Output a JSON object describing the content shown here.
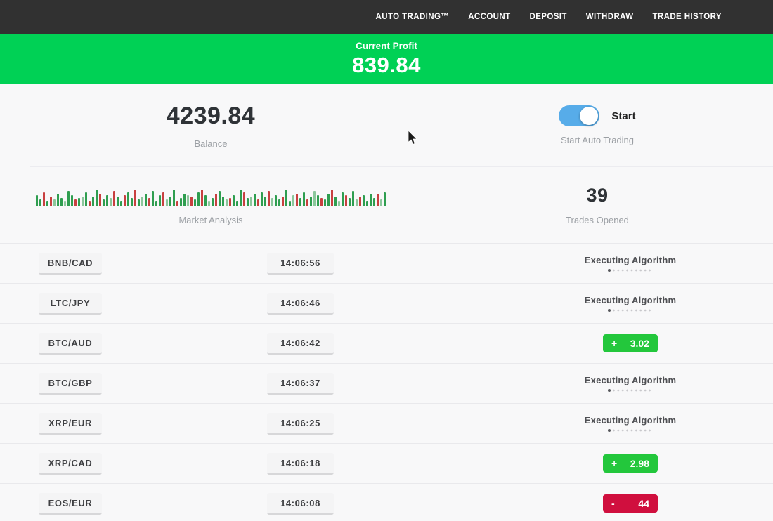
{
  "nav": {
    "items": [
      {
        "label": "AUTO TRADING™"
      },
      {
        "label": "ACCOUNT"
      },
      {
        "label": "DEPOSIT"
      },
      {
        "label": "WITHDRAW"
      },
      {
        "label": "TRADE HISTORY"
      }
    ]
  },
  "profit_banner": {
    "label": "Current Profit",
    "value": "839.84"
  },
  "stats": {
    "balance": {
      "value": "4239.84",
      "label": "Balance"
    },
    "auto_trading": {
      "toggle_label": "Start",
      "label": "Start Auto Trading",
      "toggle_on": true
    },
    "market_analysis": {
      "label": "Market Analysis",
      "bars": [
        "g16",
        "g10",
        "r20",
        "g8",
        "r14",
        "G10",
        "g18",
        "g12",
        "G8",
        "g22",
        "g16",
        "r10",
        "g12",
        "G14",
        "g20",
        "r8",
        "g14",
        "g24",
        "r18",
        "g10",
        "g16",
        "G12",
        "r22",
        "g14",
        "g8",
        "r16",
        "g20",
        "g12",
        "r24",
        "g10",
        "G14",
        "g18",
        "r12",
        "g22",
        "g8",
        "g16",
        "r20",
        "G10",
        "g14",
        "g24",
        "r8",
        "g12",
        "g18",
        "G16",
        "r14",
        "g10",
        "g20",
        "r24",
        "g16",
        "G8",
        "g12",
        "r18",
        "g22",
        "g14",
        "G10",
        "r12",
        "g16",
        "g8",
        "g24",
        "r20",
        "g12",
        "G14",
        "g18",
        "r10",
        "g20",
        "g14",
        "r22",
        "G12",
        "g16",
        "g10",
        "r14",
        "g24",
        "g8",
        "G16",
        "r18",
        "g12",
        "g20",
        "r10",
        "g14",
        "G22",
        "g16",
        "r12",
        "g10",
        "g18",
        "r24",
        "g14",
        "G8",
        "g20",
        "r16",
        "g12",
        "g22",
        "G10",
        "r14",
        "g16",
        "g8",
        "g18",
        "g12",
        "r18",
        "G10",
        "g20"
      ]
    },
    "trades_opened": {
      "value": "39",
      "label": "Trades Opened"
    }
  },
  "trades": {
    "executing_label": "Executing Algorithm",
    "rows": [
      {
        "pair": "BNB/CAD",
        "time": "14:06:56",
        "status": "executing"
      },
      {
        "pair": "LTC/JPY",
        "time": "14:06:46",
        "status": "executing"
      },
      {
        "pair": "BTC/AUD",
        "time": "14:06:42",
        "status": "profit",
        "sign": "+",
        "value": "3.02"
      },
      {
        "pair": "BTC/GBP",
        "time": "14:06:37",
        "status": "executing"
      },
      {
        "pair": "XRP/EUR",
        "time": "14:06:25",
        "status": "executing"
      },
      {
        "pair": "XRP/CAD",
        "time": "14:06:18",
        "status": "profit",
        "sign": "+",
        "value": "2.98"
      },
      {
        "pair": "EOS/EUR",
        "time": "14:06:08",
        "status": "loss",
        "sign": "-",
        "value": "44"
      }
    ]
  },
  "colors": {
    "nav_bg": "#313131",
    "banner_green": "#00d155",
    "profit_green": "#23c73c",
    "loss_red": "#d00f3e",
    "toggle_blue": "#57ace9",
    "bar_green": "#2f9e50",
    "bar_red": "#c84040",
    "bar_light_green": "#8cc79c",
    "bar_light_red": "#dca0a0"
  }
}
